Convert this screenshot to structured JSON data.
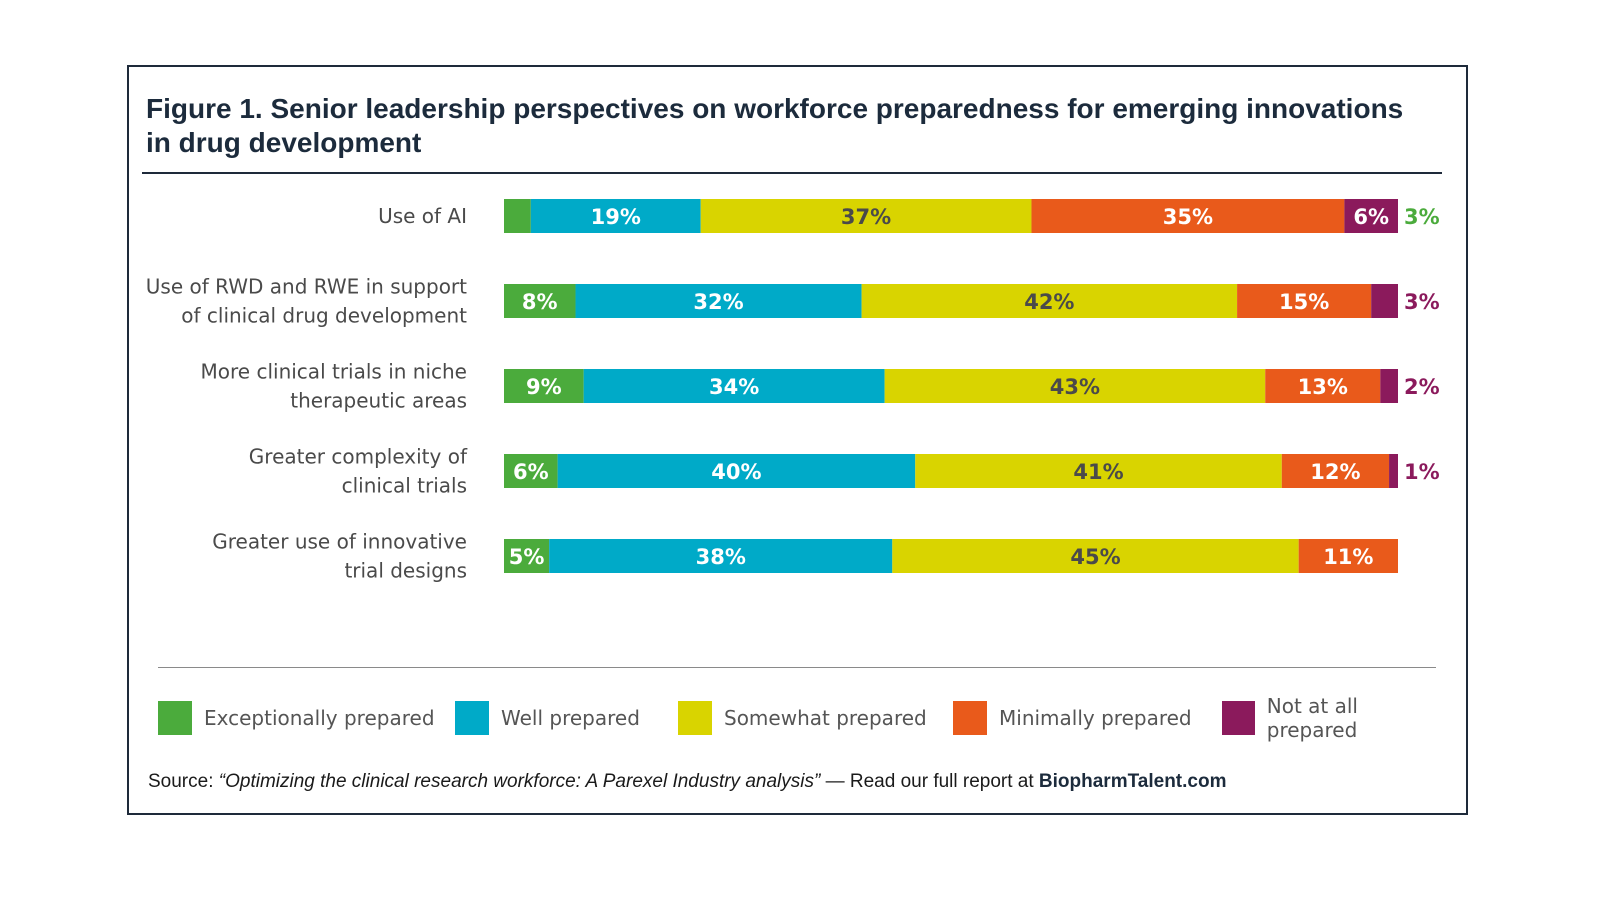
{
  "title": "Figure 1. Senior leadership perspectives on workforce preparedness for emerging innovations in drug development",
  "source": {
    "prefix": "Source: ",
    "report_title": "“Optimizing the clinical research workforce: A Parexel Industry analysis”",
    "separator": " —  ",
    "cta": "Read our full report at ",
    "site": "BiopharmTalent.com"
  },
  "chart_data": {
    "type": "bar",
    "orientation": "horizontal",
    "stacked": true,
    "unit": "%",
    "categories": [
      [
        "Use of AI"
      ],
      [
        "Use of RWD and RWE in support",
        "of clinical drug development"
      ],
      [
        "More clinical trials in niche",
        "therapeutic areas"
      ],
      [
        "Greater complexity of",
        "clinical trials"
      ],
      [
        "Greater use of innovative",
        "trial designs"
      ]
    ],
    "series": [
      {
        "name": "Exceptionally prepared",
        "color": "#4bab3c",
        "values": [
          3,
          8,
          9,
          6,
          5
        ]
      },
      {
        "name": "Well prepared",
        "color": "#00aac8",
        "values": [
          19,
          32,
          34,
          40,
          38
        ]
      },
      {
        "name": "Somewhat prepared",
        "color": "#d9d400",
        "values": [
          37,
          42,
          43,
          41,
          45
        ]
      },
      {
        "name": "Minimally prepared",
        "color": "#e95a1b",
        "values": [
          35,
          15,
          13,
          12,
          11
        ]
      },
      {
        "name": "Not at all prepared",
        "color": "#8b1a5c",
        "values": [
          6,
          3,
          2,
          1,
          0
        ]
      }
    ],
    "legend_position": "bottom",
    "grid": false
  }
}
